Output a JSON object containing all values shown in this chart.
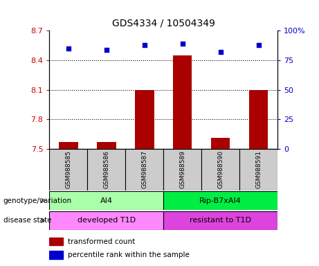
{
  "title": "GDS4334 / 10504349",
  "samples": [
    "GSM988585",
    "GSM988586",
    "GSM988587",
    "GSM988589",
    "GSM988590",
    "GSM988591"
  ],
  "bar_values": [
    7.57,
    7.57,
    8.1,
    8.45,
    7.61,
    8.1
  ],
  "scatter_values": [
    85,
    84,
    88,
    89,
    82,
    88
  ],
  "ylim_left": [
    7.5,
    8.7
  ],
  "ylim_right": [
    0,
    100
  ],
  "yticks_left": [
    7.5,
    7.8,
    8.1,
    8.4,
    8.7
  ],
  "ytick_labels_left": [
    "7.5",
    "7.8",
    "8.1",
    "8.4",
    "8.7"
  ],
  "yticks_right": [
    0,
    25,
    50,
    75,
    100
  ],
  "ytick_labels_right": [
    "0",
    "25",
    "50",
    "75",
    "100%"
  ],
  "hlines": [
    7.8,
    8.1,
    8.4
  ],
  "bar_color": "#aa0000",
  "scatter_color": "#0000cc",
  "bar_bottom": 7.5,
  "genotype_groups": [
    {
      "label": "AI4",
      "start": 0,
      "end": 3,
      "color": "#aaffaa"
    },
    {
      "label": "Rip-B7xAI4",
      "start": 3,
      "end": 6,
      "color": "#00ee44"
    }
  ],
  "disease_groups": [
    {
      "label": "developed T1D",
      "start": 0,
      "end": 3,
      "color": "#ff88ff"
    },
    {
      "label": "resistant to T1D",
      "start": 3,
      "end": 6,
      "color": "#dd44dd"
    }
  ],
  "legend_items": [
    {
      "label": "transformed count",
      "color": "#aa0000"
    },
    {
      "label": "percentile rank within the sample",
      "color": "#0000cc"
    }
  ],
  "left_tick_color": "#cc0000",
  "right_tick_color": "#0000cc",
  "sample_box_color": "#cccccc",
  "genotype_label": "genotype/variation",
  "disease_label": "disease state",
  "bar_width": 0.5,
  "arrow_color": "#888888"
}
